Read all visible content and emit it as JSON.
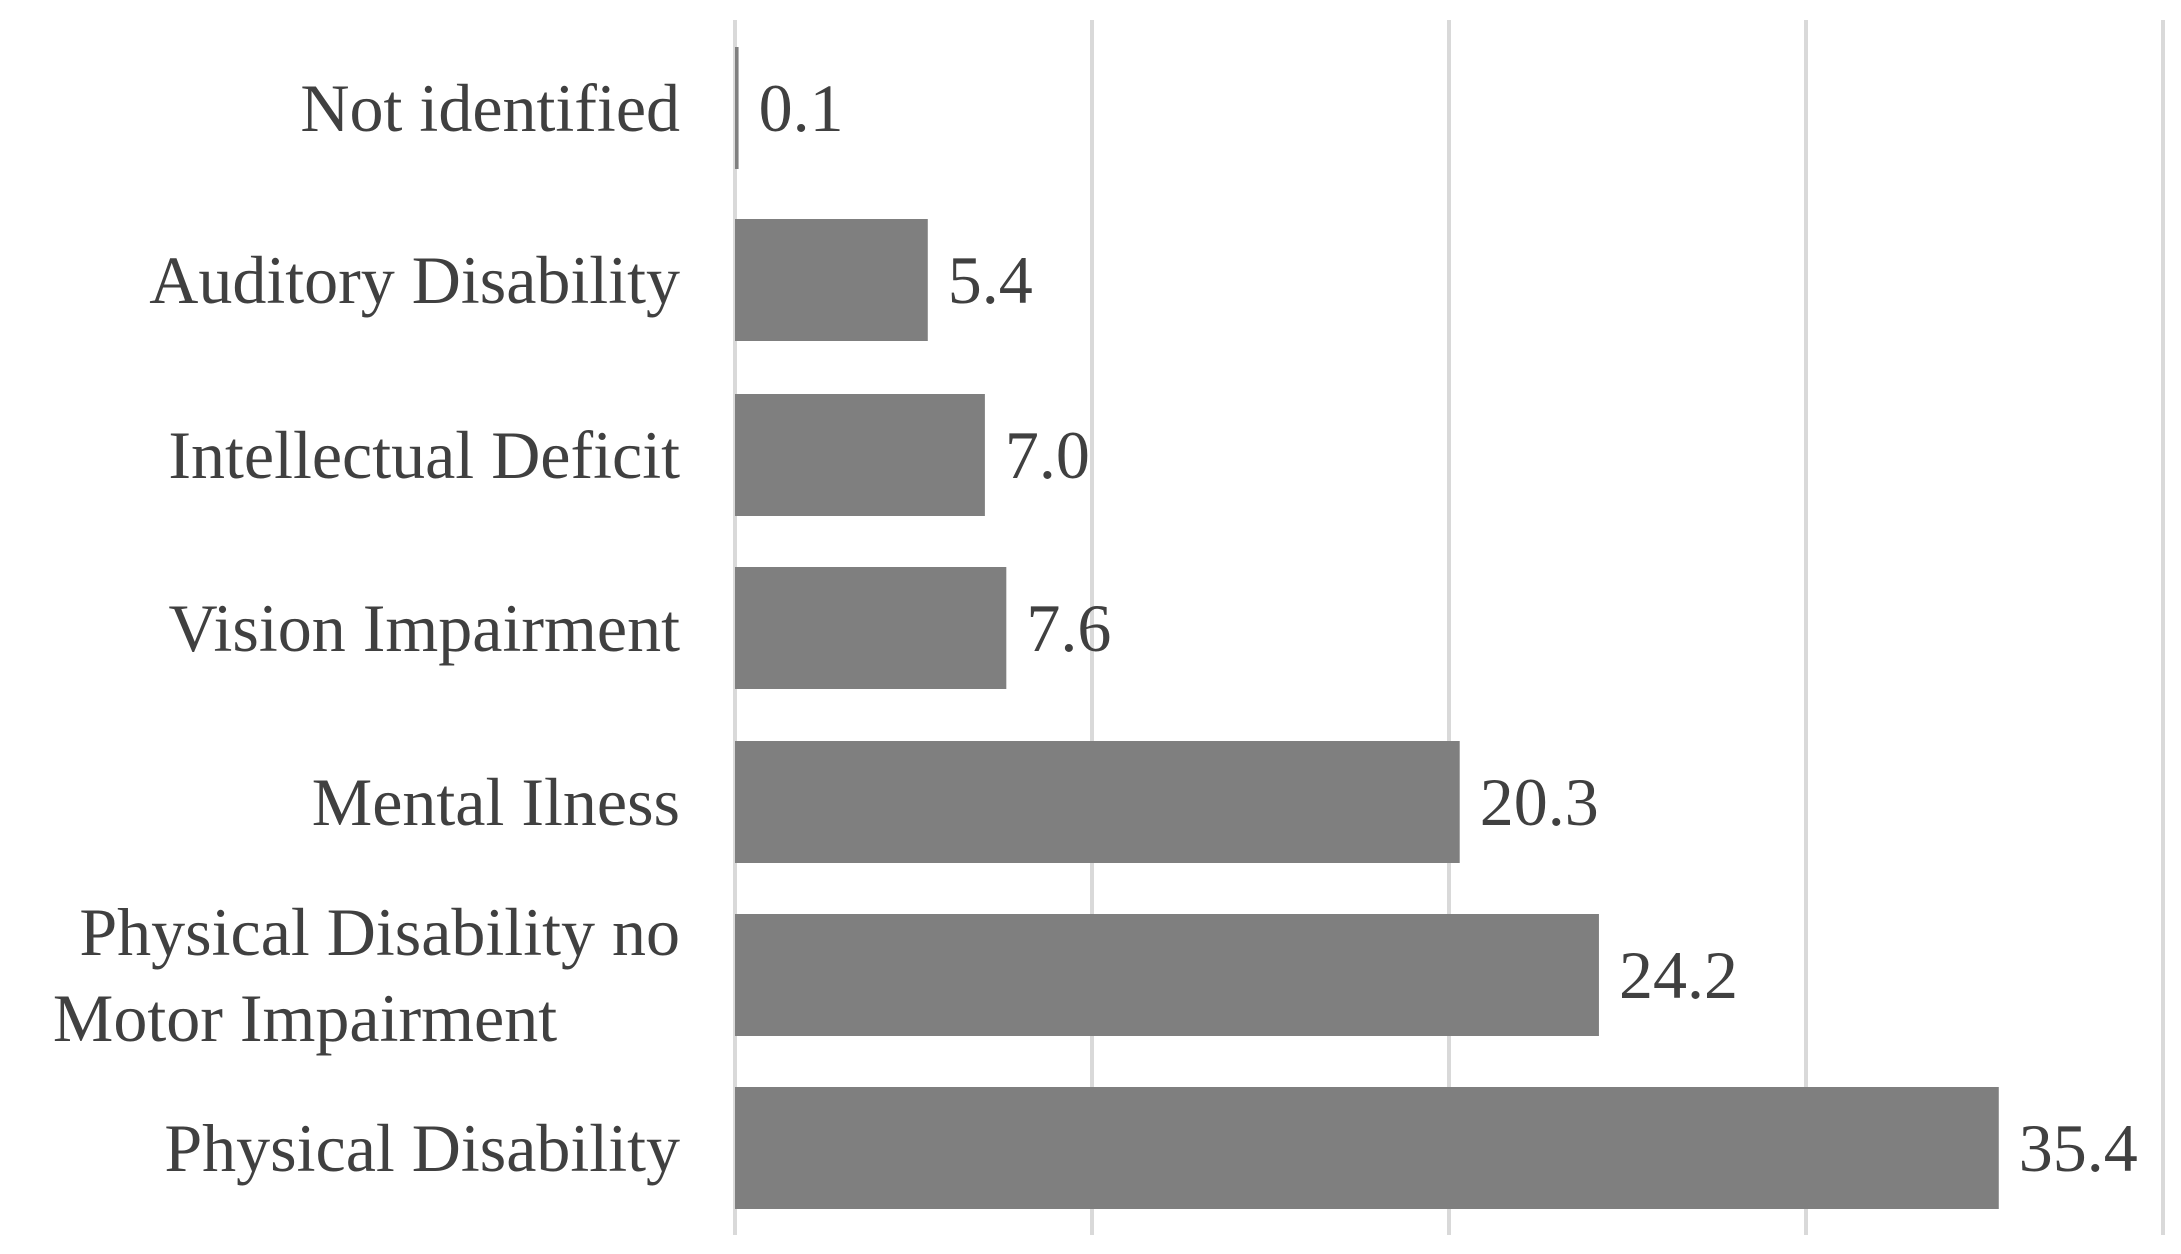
{
  "chart_data": {
    "type": "bar",
    "orientation": "horizontal",
    "title": "",
    "xlabel": "",
    "ylabel": "",
    "xlim": [
      0,
      40
    ],
    "grid": true,
    "legend": "none",
    "bar_color": "#7f7f7f",
    "gridline_color": "#d9d9d9",
    "text_color": "#404040",
    "categories": [
      "Not identified",
      "Auditory Disability",
      "Intellectual Deficit",
      "Vision Impairment",
      "Mental Ilness",
      "Physical Disability no Motor Impairment",
      "Physical Disability"
    ],
    "category_lines": [
      [
        "Not identified"
      ],
      [
        "Auditory Disability"
      ],
      [
        "Intellectual Deficit"
      ],
      [
        "Vision Impairment"
      ],
      [
        "Mental Ilness"
      ],
      [
        "Physical Disability no",
        "Motor Impairment"
      ],
      [
        "Physical Disability"
      ]
    ],
    "values": [
      0.1,
      5.4,
      7.0,
      7.6,
      20.3,
      24.2,
      35.4
    ],
    "value_labels": [
      "0.1",
      "5.4",
      "7.0",
      "7.6",
      "20.3",
      "24.2",
      "35.4"
    ]
  }
}
